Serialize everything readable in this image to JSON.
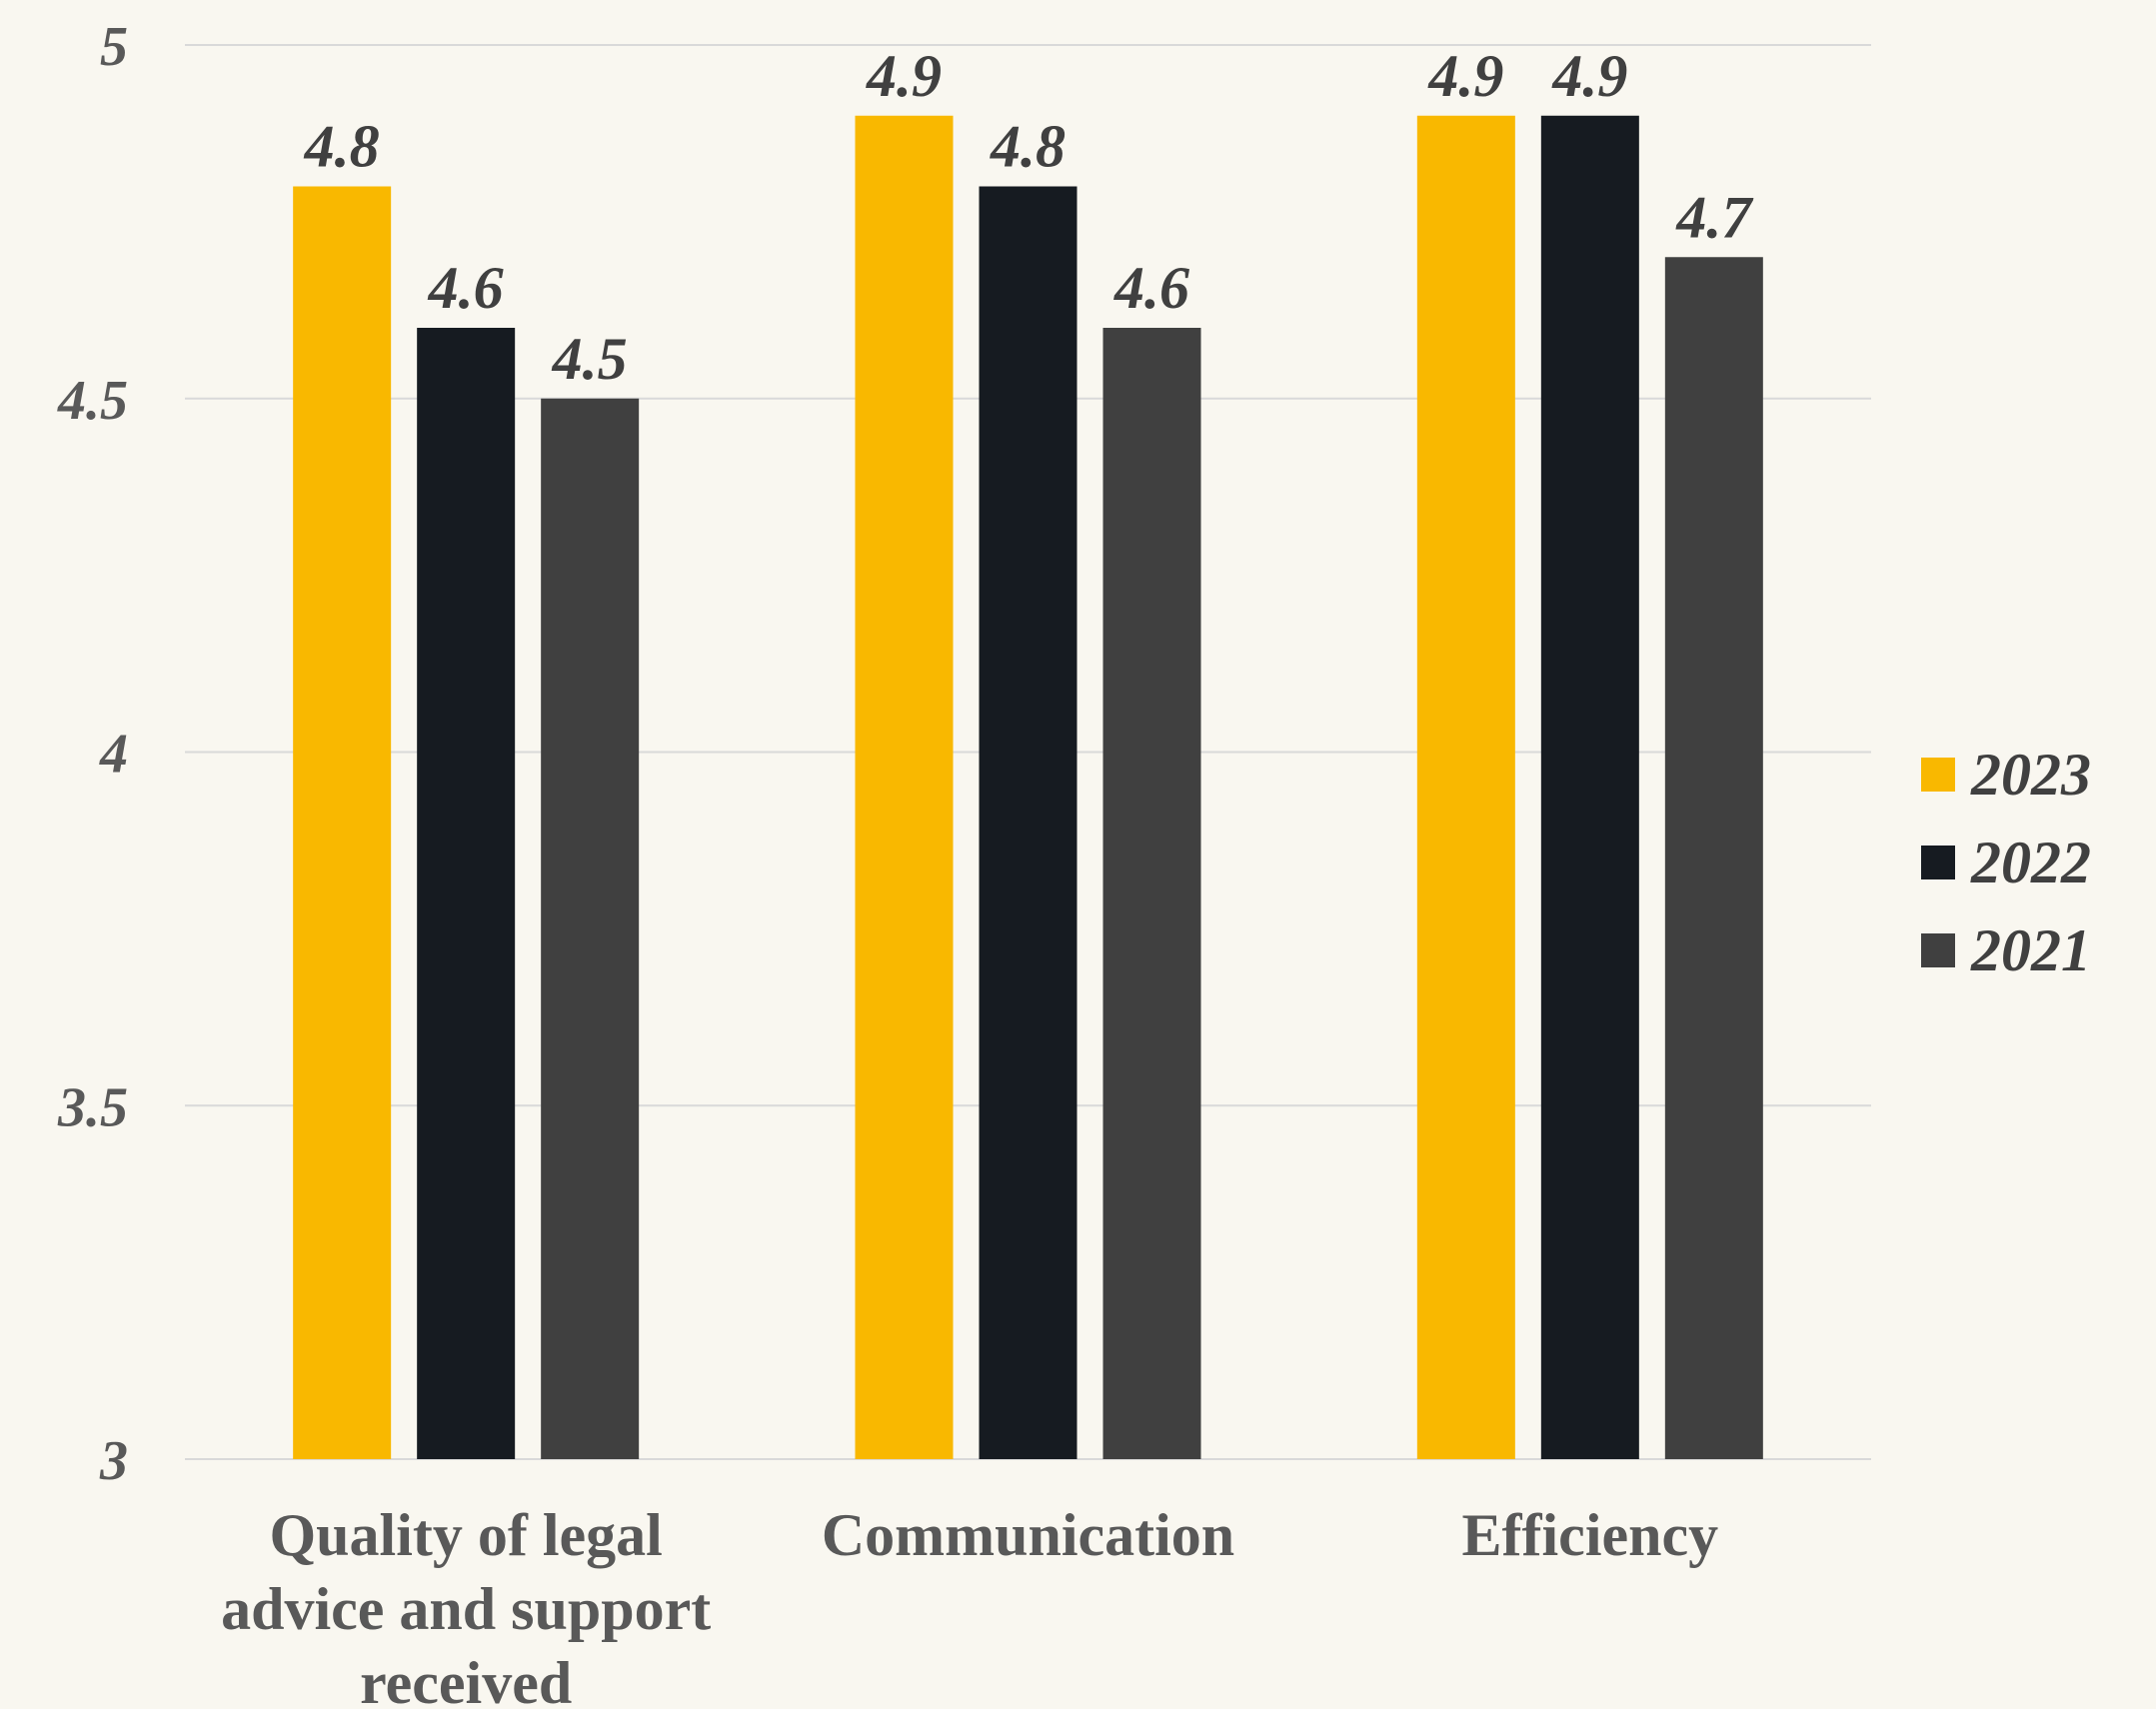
{
  "chart_data": {
    "type": "bar",
    "categories": [
      [
        "Quality of legal",
        "advice and support",
        "received"
      ],
      [
        "Communication"
      ],
      [
        "Efficiency"
      ]
    ],
    "series": [
      {
        "name": "2023",
        "values": [
          4.8,
          4.9,
          4.9
        ],
        "color": "#f9b800"
      },
      {
        "name": "2022",
        "values": [
          4.6,
          4.8,
          4.9
        ],
        "color": "#161b21"
      },
      {
        "name": "2021",
        "values": [
          4.5,
          4.6,
          4.7
        ],
        "color": "#404040"
      }
    ],
    "ylim": [
      3,
      5
    ],
    "yticks": [
      "3",
      "3.5",
      "4",
      "4.5",
      "5"
    ],
    "grid": true,
    "legend_position": "right",
    "title": "",
    "xlabel": "",
    "ylabel": ""
  }
}
